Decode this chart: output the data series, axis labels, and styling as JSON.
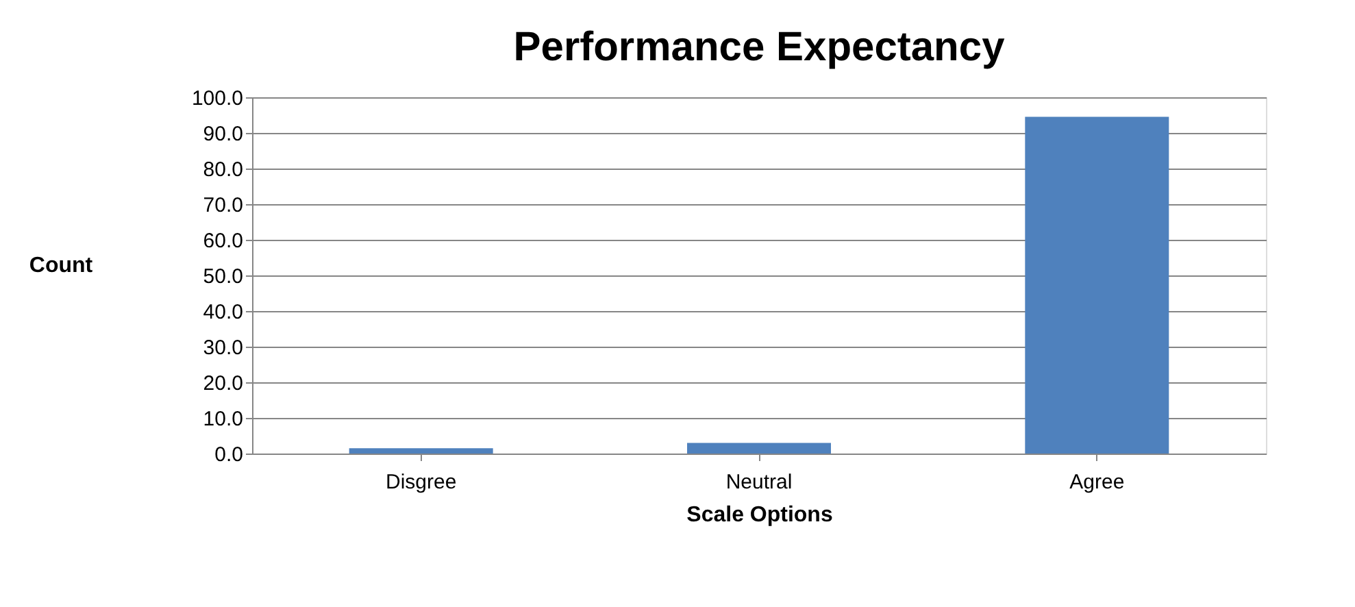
{
  "chart_data": {
    "type": "bar",
    "title": "Performance Expectancy",
    "xlabel": "Scale Options",
    "ylabel": "Count",
    "categories": [
      "Disgree",
      "Neutral",
      "Agree"
    ],
    "values": [
      1.5,
      3.0,
      94.5
    ],
    "color": "#4f81bd",
    "ylim": [
      0,
      100
    ],
    "yticks": [
      {
        "value": 0,
        "label": "0.0"
      },
      {
        "value": 10,
        "label": "10.0"
      },
      {
        "value": 20,
        "label": "20.0"
      },
      {
        "value": 30,
        "label": "30.0"
      },
      {
        "value": 40,
        "label": "40.0"
      },
      {
        "value": 50,
        "label": "50.0"
      },
      {
        "value": 60,
        "label": "60.0"
      },
      {
        "value": 70,
        "label": "70.0"
      },
      {
        "value": 80,
        "label": "80.0"
      },
      {
        "value": 90,
        "label": "90.0"
      },
      {
        "value": 100,
        "label": "100.0"
      }
    ],
    "grid": "y"
  }
}
